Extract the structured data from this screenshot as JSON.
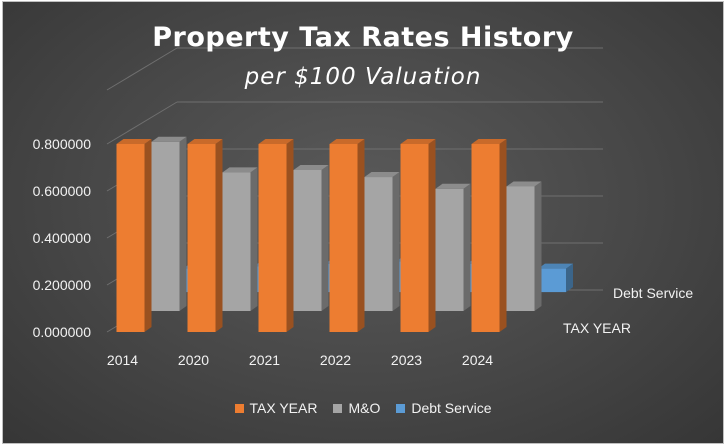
{
  "chart_data": {
    "type": "bar",
    "title": "Property Tax Rates History",
    "subtitle": "per $100 Valuation",
    "categories": [
      "2014",
      "2020",
      "2021",
      "2022",
      "2023",
      "2024"
    ],
    "series": [
      {
        "name": "TAX YEAR",
        "values": [
          0.8,
          0.8,
          0.8,
          0.8,
          0.8,
          0.8
        ],
        "color": "#ed7d31"
      },
      {
        "name": "M&O",
        "values": [
          0.72,
          0.59,
          0.6,
          0.57,
          0.52,
          0.53
        ],
        "color": "#a5a5a5"
      },
      {
        "name": "Debt Service",
        "values": [
          0.1,
          0.11,
          0.12,
          0.13,
          0.12,
          0.1
        ],
        "color": "#5b9bd5"
      }
    ],
    "depth_labels": [
      "TAX YEAR",
      "Debt Service"
    ],
    "yticks": [
      "0.000000",
      "0.200000",
      "0.400000",
      "0.600000",
      "0.800000"
    ],
    "ylim": [
      0,
      0.8
    ],
    "grid": true,
    "legend_position": "bottom",
    "style": "3d-column"
  }
}
